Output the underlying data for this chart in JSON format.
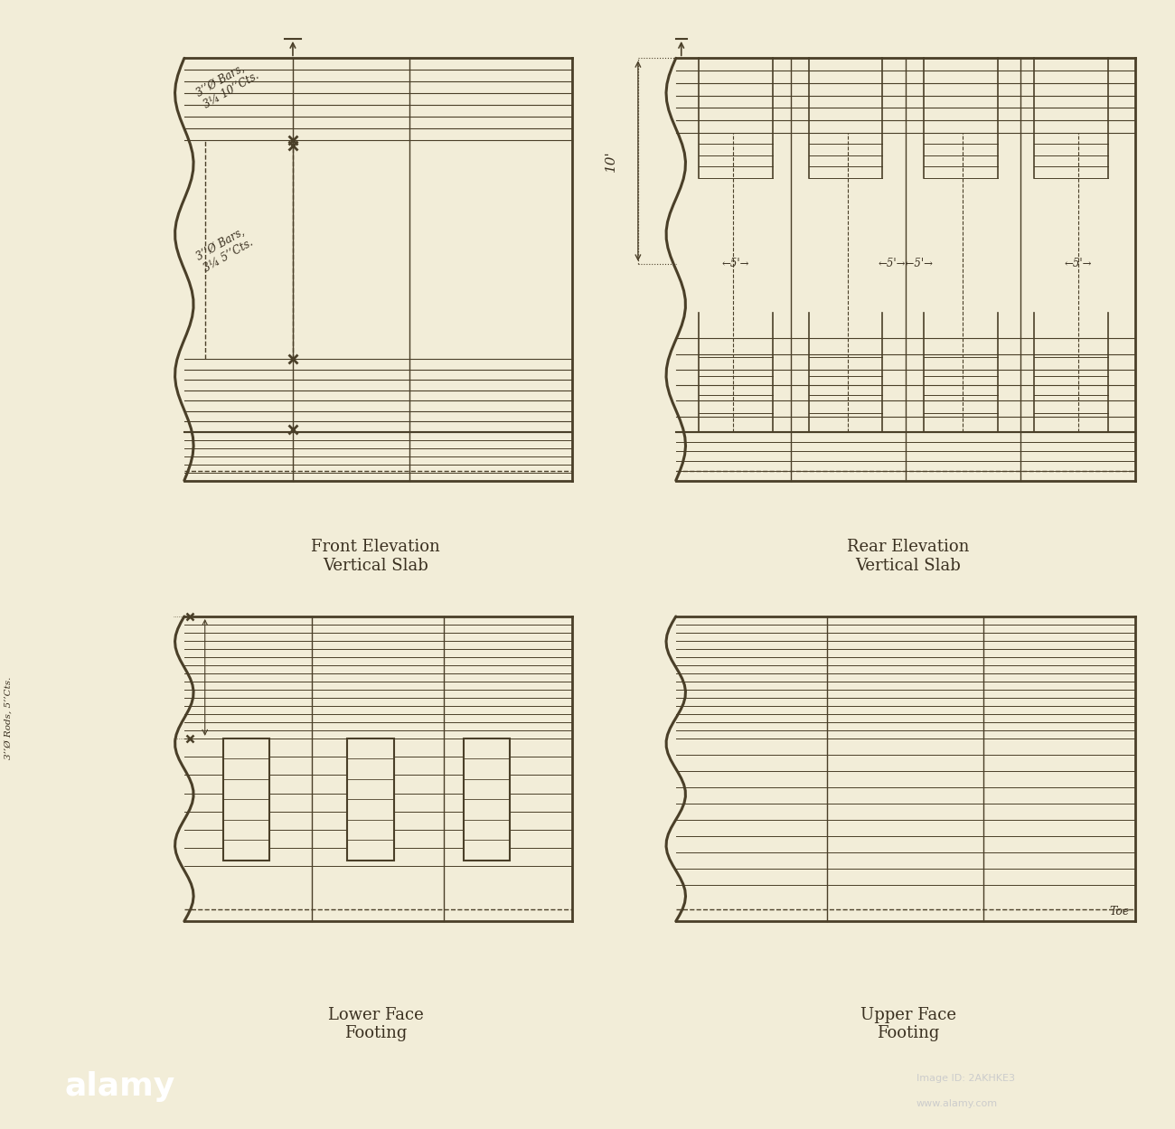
{
  "bg_color": "#f2edd8",
  "line_color": "#4a3f28",
  "text_color": "#3a3020",
  "title_front_elev": "Front Elevation\nVertical Slab",
  "title_rear_elev": "Rear Elevation\nVertical Slab",
  "title_lower_face": "Lower Face\nFooting",
  "title_upper_face": "Upper Face\nFooting"
}
